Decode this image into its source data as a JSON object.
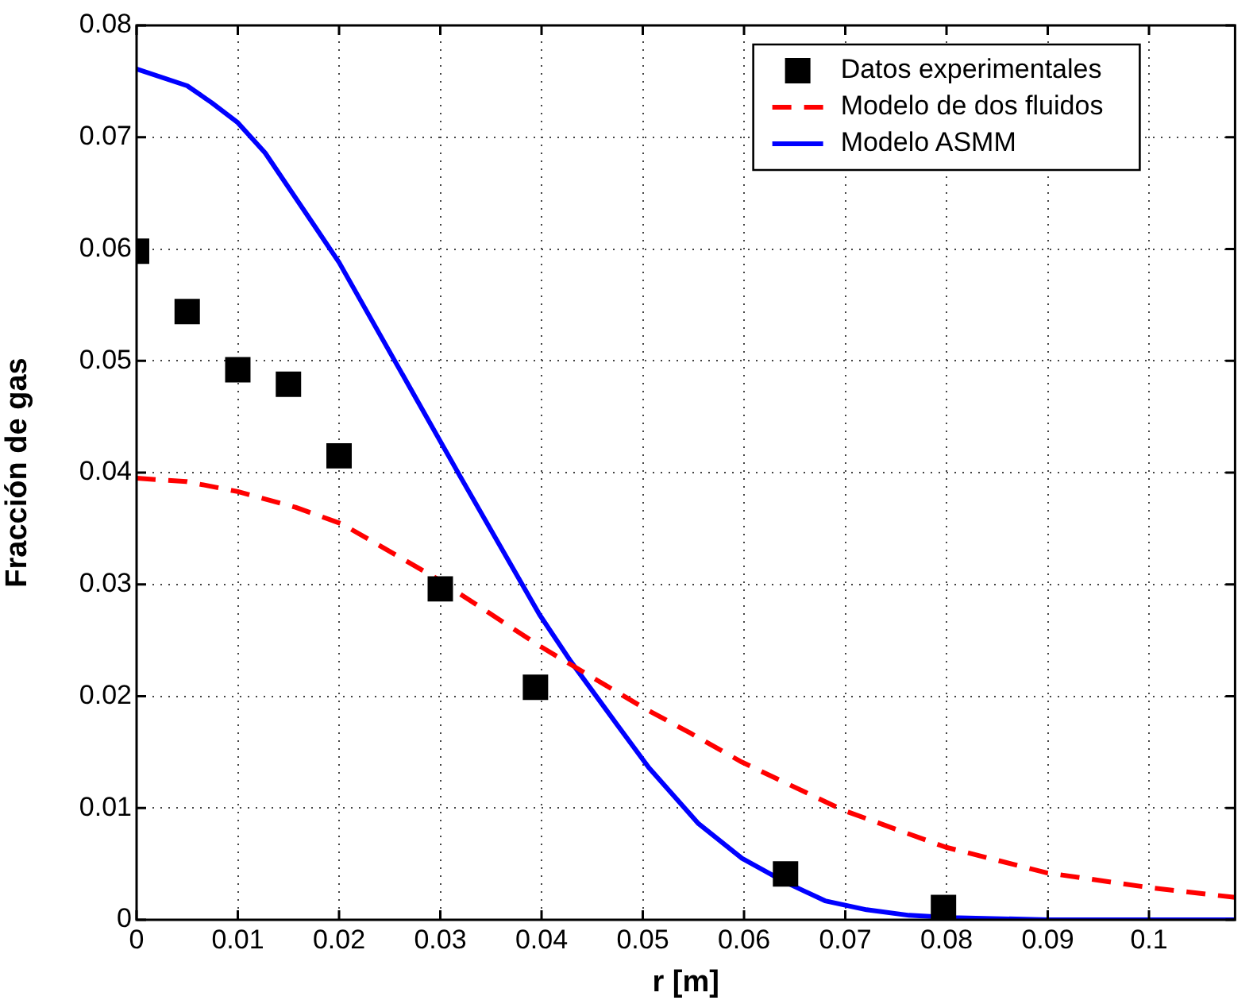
{
  "chart_data": {
    "type": "line",
    "xlabel": "r [m]",
    "ylabel": "Fracción de gas",
    "xlim": [
      0,
      0.1085
    ],
    "xticks": [
      0,
      0.01,
      0.02,
      0.03,
      0.04,
      0.05,
      0.06,
      0.07,
      0.08,
      0.09,
      0.1
    ],
    "ylim": [
      0,
      0.08
    ],
    "yticks": [
      0,
      0.01,
      0.02,
      0.03,
      0.04,
      0.05,
      0.06,
      0.07,
      0.08
    ],
    "grid": true,
    "legend": "top right",
    "series": [
      {
        "name": "Datos experimentales",
        "type": "scatter",
        "marker": "square",
        "color": "#000000",
        "x": [
          0,
          0.005,
          0.01,
          0.015,
          0.02,
          0.03,
          0.0394,
          0.0641,
          0.0797
        ],
        "values": [
          0.0598,
          0.0544,
          0.0492,
          0.0479,
          0.0415,
          0.0296,
          0.0208,
          0.0041,
          0.0011
        ]
      },
      {
        "name": "Modelo de dos fluidos",
        "line_style": "dashed",
        "marker": "none",
        "color": "#ff0000",
        "x": [
          0,
          0.0049,
          0.01,
          0.0157,
          0.0203,
          0.0295,
          0.0398,
          0.05,
          0.0547,
          0.0598,
          0.0698,
          0.0799,
          0.0899,
          0.0999,
          0.1085
        ],
        "values": [
          0.0395,
          0.0392,
          0.0383,
          0.0369,
          0.0354,
          0.0306,
          0.0245,
          0.019,
          0.0167,
          0.0141,
          0.0098,
          0.0065,
          0.0042,
          0.0029,
          0.002
        ]
      },
      {
        "name": "Modelo ASMM",
        "line_style": "solid",
        "marker": "none",
        "color": "#0000ff",
        "x": [
          0,
          0.005,
          0.0074,
          0.01,
          0.0127,
          0.0177,
          0.02,
          0.032,
          0.0398,
          0.0429,
          0.0475,
          0.0506,
          0.0555,
          0.0598,
          0.064,
          0.068,
          0.0721,
          0.0763,
          0.0804,
          0.09,
          0.1085
        ],
        "values": [
          0.0761,
          0.0746,
          0.0731,
          0.0713,
          0.0686,
          0.0619,
          0.0588,
          0.0396,
          0.0273,
          0.0231,
          0.0174,
          0.0136,
          0.0086,
          0.0055,
          0.0034,
          0.0017,
          0.0009,
          0.0004,
          0.0002,
          0,
          0
        ]
      }
    ]
  }
}
